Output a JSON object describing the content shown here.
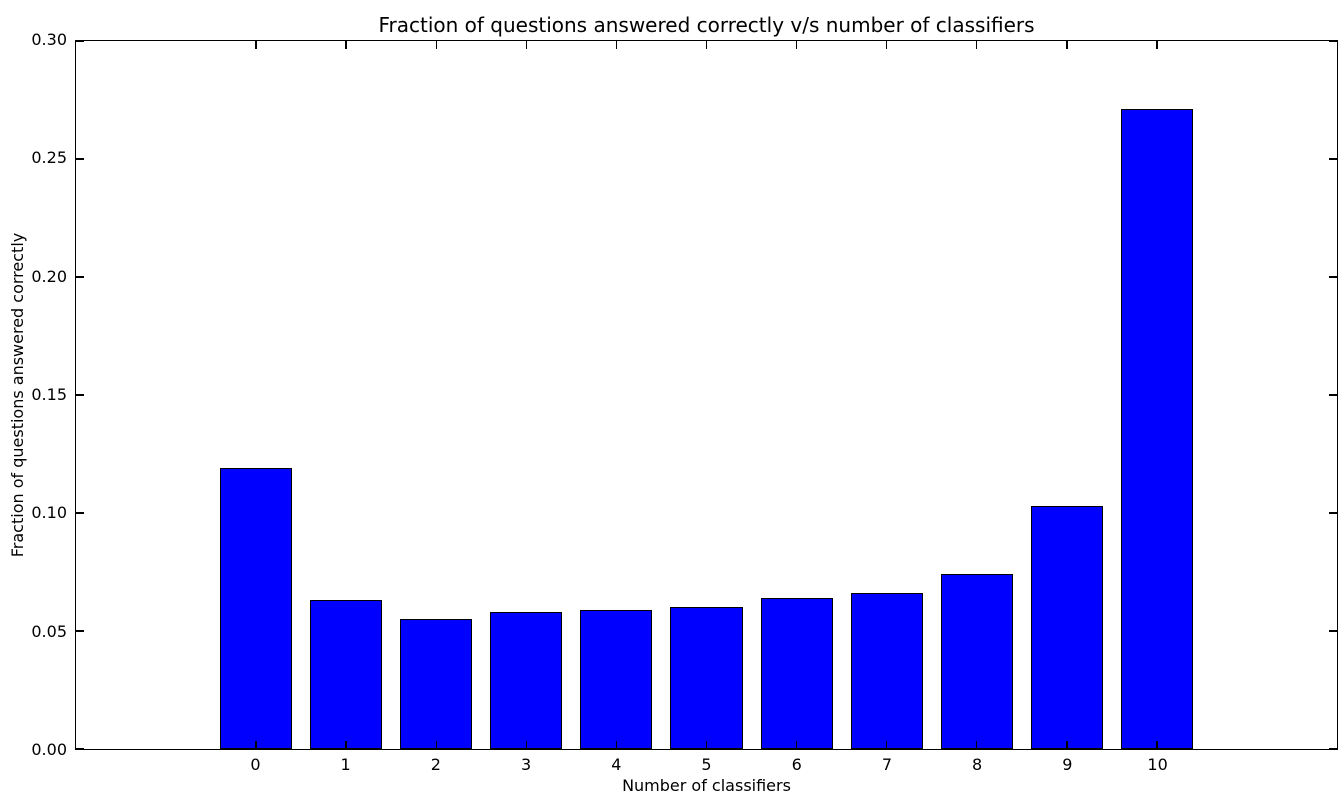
{
  "chart_data": {
    "type": "bar",
    "title": "Fraction of questions answered correctly v/s number of classifiers",
    "xlabel": "Number of classifiers",
    "ylabel": "Fraction of questions answered correctly",
    "categories": [
      "0",
      "1",
      "2",
      "3",
      "4",
      "5",
      "6",
      "7",
      "8",
      "9",
      "10"
    ],
    "x": [
      0,
      1,
      2,
      3,
      4,
      5,
      6,
      7,
      8,
      9,
      10
    ],
    "values": [
      0.119,
      0.063,
      0.055,
      0.058,
      0.059,
      0.06,
      0.064,
      0.066,
      0.074,
      0.103,
      0.271
    ],
    "bar_width": 0.8,
    "bar_color": "#0000ff",
    "bar_edge_color": "#000000",
    "xlim": [
      -2,
      12
    ],
    "ylim": [
      0.0,
      0.3
    ],
    "ytick_values": [
      0.0,
      0.05,
      0.1,
      0.15,
      0.2,
      0.25,
      0.3
    ],
    "ytick_labels": [
      "0.00",
      "0.05",
      "0.10",
      "0.15",
      "0.20",
      "0.25",
      "0.30"
    ],
    "grid": false,
    "legend": null,
    "tick_direction": "in",
    "ticks_on_all_sides": true,
    "background_color": "#ffffff",
    "text_color": "#000000"
  }
}
